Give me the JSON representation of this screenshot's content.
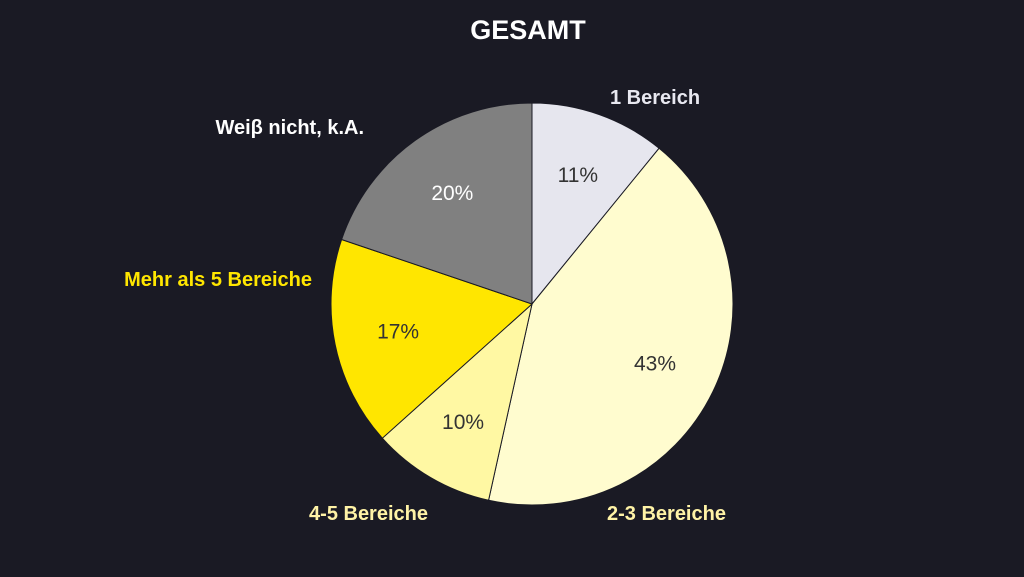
{
  "chart_data": {
    "type": "pie",
    "title": "GESAMT",
    "start_angle_deg": 0,
    "direction": "clockwise",
    "slices": [
      {
        "label": "1 Bereich",
        "value": 11,
        "value_label": "11%",
        "color": "#e6e6ee",
        "label_color": "#e8e8f0",
        "value_color": "#333333"
      },
      {
        "label": "2-3 Bereiche",
        "value": 43,
        "value_label": "43%",
        "color": "#fffccf",
        "label_color": "#fff3a6",
        "value_color": "#333333"
      },
      {
        "label": "4-5 Bereiche",
        "value": 10,
        "value_label": "10%",
        "color": "#fff8a3",
        "label_color": "#fff3a6",
        "value_color": "#333333"
      },
      {
        "label": "Mehr als 5 Bereiche",
        "value": 17,
        "value_label": "17%",
        "color": "#ffe600",
        "label_color": "#ffe600",
        "value_color": "#333333"
      },
      {
        "label": "Weiβ nicht, k.A.",
        "value": 20,
        "value_label": "20%",
        "color": "#808080",
        "label_color": "#ffffff",
        "value_color": "#ffffff"
      }
    ]
  }
}
